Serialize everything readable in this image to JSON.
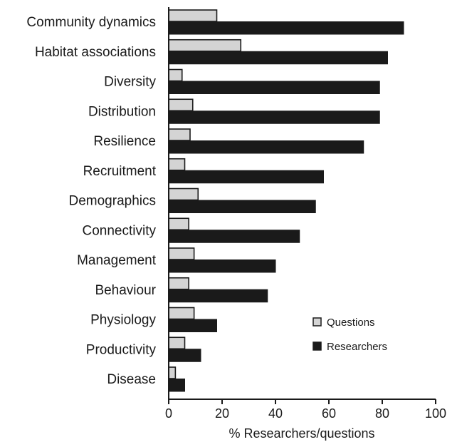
{
  "chart_data": {
    "type": "bar",
    "orientation": "horizontal",
    "categories": [
      "Community dynamics",
      "Habitat associations",
      "Diversity",
      "Distribution",
      "Resilience",
      "Recruitment",
      "Demographics",
      "Connectivity",
      "Management",
      "Behaviour",
      "Physiology",
      "Productivity",
      "Disease"
    ],
    "series": [
      {
        "name": "Questions",
        "color": "#d4d4d4",
        "values": [
          18,
          27,
          5,
          9,
          8,
          6,
          11,
          7.5,
          9.5,
          7.5,
          9.5,
          6,
          2.5
        ]
      },
      {
        "name": "Researchers",
        "color": "#1a1a1a",
        "values": [
          88,
          82,
          79,
          79,
          73,
          58,
          55,
          49,
          40,
          37,
          18,
          12,
          6
        ]
      }
    ],
    "title": "",
    "xlabel": "% Researchers/questions",
    "ylabel": "",
    "xlim": [
      0,
      100
    ],
    "xticks": [
      0,
      20,
      40,
      60,
      80,
      100
    ],
    "xtick_labels": [
      "0",
      "20",
      "40",
      "60",
      "80",
      "100"
    ],
    "grid": false,
    "legend_position": "lower-right"
  }
}
